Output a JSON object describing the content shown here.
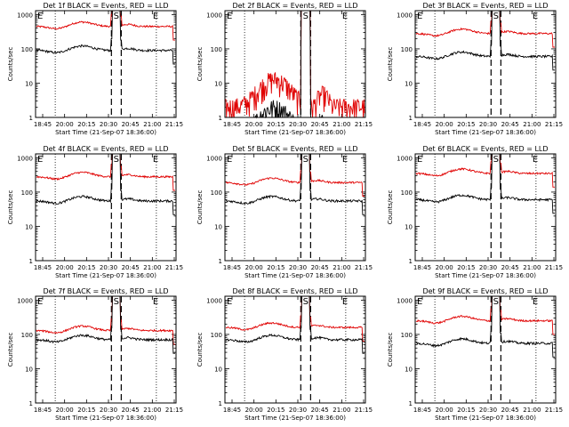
{
  "chart_data": [
    {
      "type": "line",
      "title": "Det 1f BLACK = Events, RED = LLD",
      "profile": "normal",
      "black_level": 90,
      "red_level": 450
    },
    {
      "type": "line",
      "title": "Det 2f BLACK = Events, RED = LLD",
      "profile": "low",
      "black_level": 1.2,
      "red_level": 8
    },
    {
      "type": "line",
      "title": "Det 3f BLACK = Events, RED = LLD",
      "profile": "normal",
      "black_level": 60,
      "red_level": 280
    },
    {
      "type": "line",
      "title": "Det 4f BLACK = Events, RED = LLD",
      "profile": "normal",
      "black_level": 55,
      "red_level": 280
    },
    {
      "type": "line",
      "title": "Det 5f BLACK = Events, RED = LLD",
      "profile": "normal",
      "black_level": 55,
      "red_level": 190
    },
    {
      "type": "line",
      "title": "Det 6f BLACK = Events, RED = LLD",
      "profile": "normal",
      "black_level": 60,
      "red_level": 350
    },
    {
      "type": "line",
      "title": "Det 7f BLACK = Events, RED = LLD",
      "profile": "normal",
      "black_level": 70,
      "red_level": 130
    },
    {
      "type": "line",
      "title": "Det 8f BLACK = Events, RED = LLD",
      "profile": "normal",
      "black_level": 70,
      "red_level": 160
    },
    {
      "type": "line",
      "title": "Det 9f BLACK = Events, RED = LLD",
      "profile": "normal",
      "black_level": 55,
      "red_level": 250
    }
  ],
  "common": {
    "ylabel": "Counts/sec",
    "xlabel": "Start Time (21-Sep-07 18:36:00)",
    "xticks": [
      "18:45",
      "20:00",
      "20:15",
      "20:30",
      "20:45",
      "21:00",
      "21:15"
    ],
    "yticks": [
      "1",
      "10",
      "100",
      "1000"
    ],
    "ylim": [
      1,
      1300
    ],
    "yscale": "log",
    "markers": {
      "left": "E",
      "center": "S",
      "right": "E"
    },
    "colors": {
      "events": "#000000",
      "lld": "#e00000"
    }
  }
}
